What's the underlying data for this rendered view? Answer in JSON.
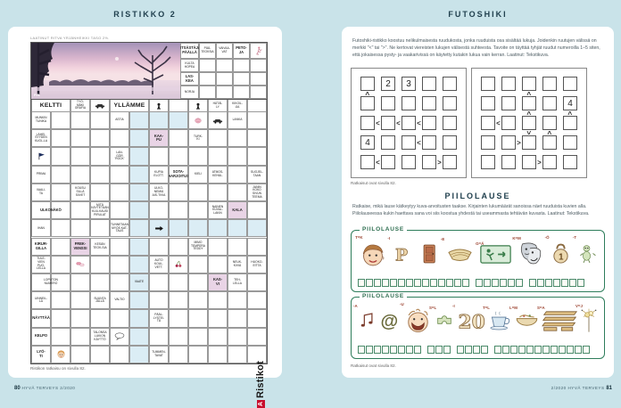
{
  "left_page": {
    "title": "RISTIKKO 2",
    "byline": "LAATINUT RITVA YRJÄNHEIKKI TASO 2½.",
    "photo_credit": "P.R.",
    "solution_note": "Ristikon ratkaisu on sivulla 82.",
    "logo": {
      "badge": "A",
      "text": "Ristikot",
      "badge_color": "#c8102e"
    },
    "footer": {
      "page": "80",
      "magazine": "HYVÄ TERVEYS 2/2020"
    },
    "crossword": {
      "top_headers": [
        {
          "t": "METSÄSTÄJÄN\nPÄÄLLÄ",
          "b": 1
        },
        {
          "t": "PÄÄ-\nTEOKSIA"
        },
        {
          "t": "VAIVAA-\nVAT"
        },
        {
          "t": "PETO-\nJA",
          "b": 1
        },
        {
          "icon": "skater"
        }
      ],
      "top_rows": [
        {
          "t": "KULTA\nHOPEA"
        },
        {
          "t": "LAS-\nKEA",
          "b": 1
        },
        {
          "t": "NORJA"
        }
      ],
      "band": [
        {
          "t": "KELTTI",
          "big": 1
        },
        {
          "t": "TYÖ-\nMÄKI\nGRAFIA"
        },
        {
          "icon": "car"
        },
        {
          "t": "YLLÄMME",
          "big": 1
        },
        {
          "icon": "pawn"
        },
        {
          "t": ""
        },
        {
          "icon": "pawn"
        },
        {
          "t": "HÄTÄI-\nLY"
        },
        {
          "t": "KIKOIL-\nIJA"
        },
        {
          "t": ""
        }
      ],
      "highlights": {
        "blue_col": 6,
        "blue_row": 7,
        "blue_row_from": 6,
        "blue_cells": [
          [
            7,
            1
          ],
          [
            8,
            1
          ]
        ],
        "pink_cells": [
          [
            7,
            2
          ],
          [
            3,
            8
          ],
          [
            11,
            6
          ],
          [
            10,
            10
          ]
        ]
      },
      "labels": [
        {
          "c": 1,
          "r": 1,
          "t": "MUNKIN\nTUNIKA"
        },
        {
          "c": 1,
          "r": 2,
          "t": "LÄHEI-\nSYYDEN\nKUOL-LA"
        },
        {
          "c": 1,
          "r": 3,
          "icon": "flag"
        },
        {
          "c": 1,
          "r": 4,
          "t": "PRIMA"
        },
        {
          "c": 1,
          "r": 5,
          "t": "VAALI-\nTA"
        },
        {
          "c": 1,
          "r": 6,
          "t": "ULKONÄKÖ",
          "b": 1,
          "w": 2
        },
        {
          "c": 1,
          "r": 7,
          "t": "IHAN"
        },
        {
          "c": 1,
          "r": 8,
          "t": "KIRUR-\nGILLA",
          "b": 1
        },
        {
          "c": 1,
          "r": 9,
          "t": "TULE-\nVIEN\nPUO-\nLELLA"
        },
        {
          "c": 1,
          "r": 10,
          "t": "LOPUTON\nNUMERO",
          "w": 2
        },
        {
          "c": 1,
          "r": 11,
          "t": "UINNEIL-\nLA"
        },
        {
          "c": 1,
          "r": 12,
          "t": "NÄYTTÄÄ",
          "b": 1
        },
        {
          "c": 1,
          "r": 13,
          "t": "KELPO",
          "b": 1
        },
        {
          "c": 1,
          "r": 14,
          "t": "LYÖ-\nTI",
          "b": 1
        },
        {
          "c": 2,
          "r": 14,
          "icon": "girl"
        },
        {
          "c": 5,
          "r": 1,
          "t": "ASTIA"
        },
        {
          "c": 9,
          "r": 1,
          "icon": "hand"
        },
        {
          "c": 10,
          "r": 1,
          "icon": "car"
        },
        {
          "c": 11,
          "r": 1,
          "t": "LANKA"
        },
        {
          "c": 7,
          "r": 2,
          "t": "KAA-\nPU",
          "b": 1
        },
        {
          "c": 9,
          "r": 2,
          "t": "TURK-\nKI"
        },
        {
          "c": 5,
          "r": 3,
          "t": "LAN-\nGÖR\n'ROCK'"
        },
        {
          "c": 7,
          "r": 4,
          "t": "KUPIA\nELOTT."
        },
        {
          "c": 8,
          "r": 4,
          "t": "SOTA-\nHARJOITUS",
          "b": 1
        },
        {
          "c": 9,
          "r": 4,
          "t": "KIELI"
        },
        {
          "c": 10,
          "r": 4,
          "t": "ATMOS-\nKEHÄL."
        },
        {
          "c": 12,
          "r": 4,
          "t": "SUOJEL-\nTAAN"
        },
        {
          "c": 3,
          "r": 5,
          "t": "KOUSU\nSILLÄ\nSIIVET"
        },
        {
          "c": 7,
          "r": 5,
          "t": "ULKO-\nNEMIÄ\nAIS-TIVIA"
        },
        {
          "c": 12,
          "r": 5,
          "t": "JANIN\nKOKO\nSIVUN\nTEEMA"
        },
        {
          "c": 4,
          "r": 6,
          "t": "MITÄ\nKÄYTETÄÄN\nKUU-KAUSI\nPIRULAT"
        },
        {
          "c": 10,
          "r": 6,
          "t": "NAINEN\nKUVAL-\nLAKIN"
        },
        {
          "c": 11,
          "r": 6,
          "t": "KALA",
          "b": 1
        },
        {
          "c": 5,
          "r": 7,
          "t": "TUNNETAAN\nMYÖS KAT-\nTAUS"
        },
        {
          "c": 7,
          "r": 7,
          "icon": "arrow"
        },
        {
          "c": 3,
          "r": 8,
          "t": "FREK-\nVENSSI",
          "b": 1
        },
        {
          "c": 4,
          "r": 8,
          "t": "KESÄN\nTEOK-SIA"
        },
        {
          "c": 9,
          "r": 8,
          "t": "MIMO\nTEMPERA\nTEDDY"
        },
        {
          "c": 3,
          "r": 9,
          "icon": "pills"
        },
        {
          "c": 7,
          "r": 9,
          "t": "AUTO\nKOUL.\nVETT."
        },
        {
          "c": 8,
          "r": 9,
          "icon": "cherries"
        },
        {
          "c": 11,
          "r": 9,
          "t": "NEUK-\nKIVIÄ"
        },
        {
          "c": 12,
          "r": 9,
          "t": "HUOKO-\nEITTA"
        },
        {
          "c": 6,
          "r": 10,
          "t": "VAATE"
        },
        {
          "c": 10,
          "r": 10,
          "t": "KAS-\nVI",
          "b": 1
        },
        {
          "c": 11,
          "r": 10,
          "t": "TEH-\nLELLA"
        },
        {
          "c": 4,
          "r": 11,
          "t": "SUUNTA\nJÄLLÄ"
        },
        {
          "c": 5,
          "r": 11,
          "t": "VALTIO"
        },
        {
          "c": 7,
          "r": 12,
          "t": "PÄÄL-\nLYSTEI-\nTÄ"
        },
        {
          "c": 4,
          "r": 13,
          "t": "TALONSA\nLUKION\nKÄYTTÖ"
        },
        {
          "c": 5,
          "r": 13,
          "icon": "speech"
        },
        {
          "c": 7,
          "r": 14,
          "t": "TUMMEN-\nTAVAT"
        }
      ]
    }
  },
  "right_page": {
    "title": "FUTOSHIKI",
    "intro": "Futoshiki-ristikko koostuu nelikulmaisesta ruudukosta, jonka ruuduista osa sisältää lukuja. Joidenkin ruutujen välissä on merkki \"<\" tai \">\". Ne kertovat viereisten lukujen välisestä suhteesta. Tavoite on täyttää tyhjät ruudut numeroilla 1–5 siten, että jokaisessa pysty- ja vaakarivissä on käytetty kutakin lukua vain kerran. Laatinut: Tekstikuva.",
    "futoshiki_note": "Ratkaisut ovat sivulla 82.",
    "footer": {
      "magazine": "2/2020 HYVÄ TERVEYS",
      "page": "81"
    },
    "chart_data": {
      "type": "table",
      "note": "futoshiki grids encoded below"
    },
    "futoshiki_grids": [
      {
        "cells": [
          [
            "",
            "2",
            "3",
            "",
            ""
          ],
          [
            "",
            "",
            "",
            "",
            ""
          ],
          [
            "",
            "",
            "",
            "",
            ""
          ],
          [
            "4",
            "",
            "",
            "",
            ""
          ],
          [
            "",
            "",
            "",
            "",
            ""
          ]
        ],
        "h": [
          [
            "",
            "",
            "",
            ""
          ],
          [
            "",
            "",
            "",
            ""
          ],
          [
            "<",
            "<",
            "<",
            ""
          ],
          [
            "",
            "",
            "<",
            ""
          ],
          [
            "<",
            "",
            "",
            ">"
          ]
        ],
        "v": [
          [
            "",
            "",
            "",
            "",
            ""
          ],
          [
            "^",
            "",
            "",
            "",
            ""
          ],
          [
            "",
            "",
            "",
            "",
            ""
          ],
          [
            "",
            "",
            "",
            "",
            ""
          ]
        ]
      },
      {
        "cells": [
          [
            "",
            "",
            "",
            "",
            ""
          ],
          [
            "",
            "",
            "",
            "",
            "4"
          ],
          [
            "",
            "",
            "",
            "",
            ""
          ],
          [
            "",
            "",
            "",
            "",
            ""
          ],
          [
            "",
            "",
            "",
            "",
            ""
          ]
        ],
        "h": [
          [
            "",
            "",
            "",
            ""
          ],
          [
            "",
            "",
            "",
            ""
          ],
          [
            "<",
            "",
            "",
            ""
          ],
          [
            "",
            ">",
            "",
            ""
          ],
          [
            "",
            "",
            ">",
            ""
          ]
        ],
        "v": [
          [
            "",
            "",
            "",
            "",
            ""
          ],
          [
            "",
            "",
            "^",
            "",
            ""
          ],
          [
            "",
            "",
            "^",
            "",
            "^"
          ],
          [
            "",
            "",
            "v",
            "^",
            ""
          ]
        ]
      }
    ],
    "piilolause": {
      "title": "PIILOLAUSE",
      "intro": "Ratkaise, mikä lause kätkeytyy kuva-arvoitusten taakse. Kirjainten lukumäärät sanoissa näet ruuduista kuvien alla. Piilolauseessa kukin haettava sana voi siis koostua yhdestä tai useammasta tehtävän kuvasta. Laatinut: Tekstikuva.",
      "note": "Ratkaisut ovat sivulla 82.",
      "boxes": [
        {
          "label": "PIILOLAUSE",
          "items": [
            {
              "icon": "boy-face",
              "note": "T=K"
            },
            {
              "icon": "letter-p",
              "note": "-I"
            },
            {
              "icon": "door",
              "note": ""
            },
            {
              "icon": "boat",
              "note": "-E"
            },
            {
              "icon": "exit-sign",
              "note": "G=Ä"
            },
            {
              "icon": "theater-masks",
              "note": "K=M"
            },
            {
              "icon": "kettlebell",
              "note": "-Ö"
            },
            {
              "icon": "alien",
              "note": "-T"
            }
          ],
          "groups": [
            14,
            6,
            7
          ]
        },
        {
          "label": "PIILOLAUSE",
          "items": [
            {
              "icon": "music-notes",
              "note": "-A"
            },
            {
              "icon": "at-sign",
              "note": ""
            },
            {
              "icon": "laughing-face",
              "note": "-U"
            },
            {
              "icon": "puzzle-piece",
              "note": "S=L"
            },
            {
              "icon": "number-20",
              "note": "-I"
            },
            {
              "icon": "teacup",
              "note": "T=L"
            },
            {
              "icon": "food-bowl",
              "note": "L=M"
            },
            {
              "icon": "pallet",
              "note": "S=A"
            },
            {
              "icon": "sparkler",
              "note": "V=J"
            }
          ],
          "groups": [
            8,
            3,
            4,
            12
          ]
        }
      ]
    }
  }
}
